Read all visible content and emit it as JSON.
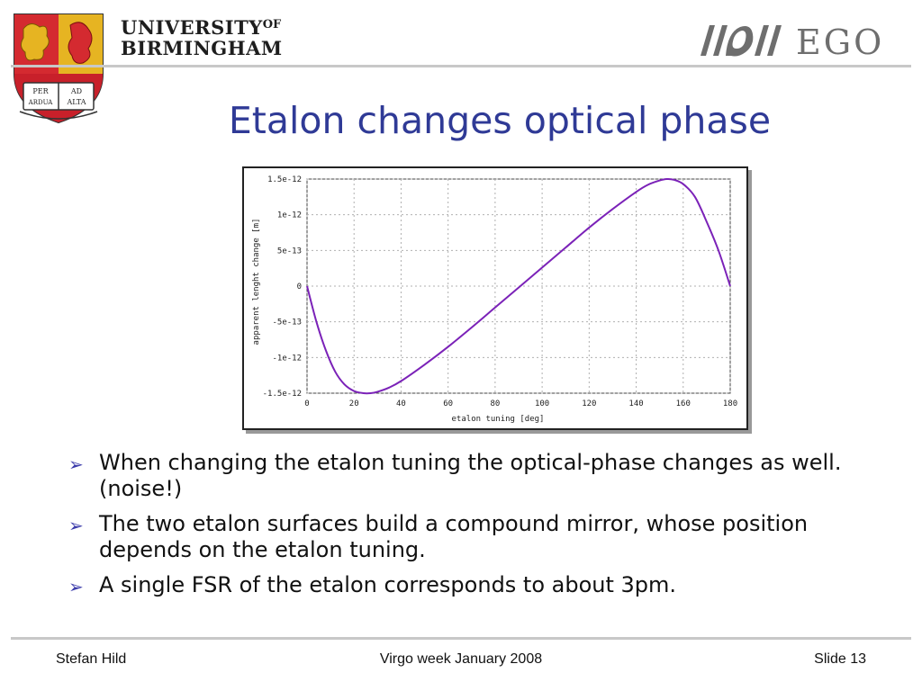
{
  "header": {
    "university_line1": "UNIVERSITY",
    "university_of": "OF",
    "university_line2": "BIRMINGHAM",
    "crest_motto": [
      "PER",
      "AD",
      "ARDUA",
      "ALTA"
    ],
    "ego_text": "EGO"
  },
  "slide": {
    "title": "Etalon changes optical phase",
    "bullets": [
      "When changing the etalon tuning the optical-phase changes as well. (noise!)",
      "The two etalon surfaces build a compound mirror, whose position depends on the etalon tuning.",
      "A single FSR of the etalon corresponds to about 3pm."
    ]
  },
  "chart_data": {
    "type": "line",
    "title": "",
    "xlabel": "etalon tuning [deg]",
    "ylabel": "apparent lenght change [m]",
    "xlim": [
      0,
      180
    ],
    "ylim": [
      -1.5e-12,
      1.5e-12
    ],
    "x_ticks": [
      0,
      20,
      40,
      60,
      80,
      100,
      120,
      140,
      160,
      180
    ],
    "x_tick_labels": [
      "0",
      "20",
      "40",
      "60",
      "80",
      "100",
      "120",
      "140",
      "160",
      "180"
    ],
    "y_ticks": [
      1.5e-12,
      1e-12,
      5e-13,
      0,
      -5e-13,
      -1e-12,
      -1.5e-12
    ],
    "y_tick_labels": [
      "1.5e-12",
      "1e-12",
      "5e-13",
      "0",
      "-5e-13",
      "-1e-12",
      "-1.5e-12"
    ],
    "grid": true,
    "line_color": "#7b22b8",
    "series": [
      {
        "x": [
          0,
          4,
          8,
          12,
          16,
          20,
          24,
          27,
          30,
          35,
          40,
          50,
          60,
          70,
          80,
          90,
          100,
          110,
          120,
          130,
          140,
          145,
          150,
          153,
          156,
          160,
          165,
          170,
          175,
          180
        ],
        "values": [
          0,
          -5e-13,
          -9e-13,
          -1.2e-12,
          -1.38e-12,
          -1.47e-12,
          -1.5e-12,
          -1.5e-12,
          -1.48e-12,
          -1.42e-12,
          -1.33e-12,
          -1.1e-12,
          -8.5e-13,
          -5.8e-13,
          -3e-13,
          -2e-14,
          2.6e-13,
          5.4e-13,
          8.2e-13,
          1.08e-12,
          1.32e-12,
          1.42e-12,
          1.48e-12,
          1.5e-12,
          1.49e-12,
          1.43e-12,
          1.25e-12,
          9e-13,
          5e-13,
          0
        ]
      }
    ]
  },
  "footer": {
    "author": "Stefan Hild",
    "event": "Virgo week January 2008",
    "slide_number": "Slide 13"
  },
  "colors": {
    "title": "#2f3a96",
    "bullet_arrow": "#3a3aaa",
    "crest_red": "#c8202a",
    "crest_gold": "#e6b422",
    "ego_gray": "#6e6e6e"
  }
}
